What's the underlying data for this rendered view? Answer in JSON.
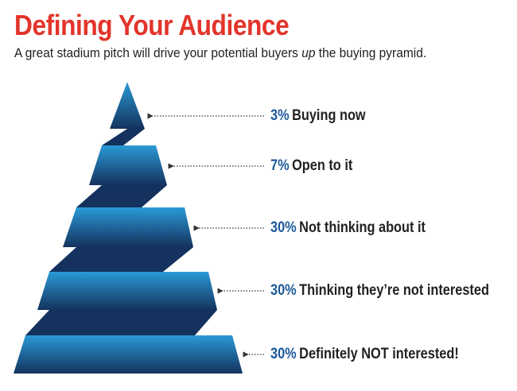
{
  "header": {
    "title": "Defining Your Audience",
    "subtitle_before": "A great stadium pitch will drive your potential buyers ",
    "subtitle_emphasis": "up",
    "subtitle_after": " the buying pyramid."
  },
  "colors": {
    "title": "#e3342b",
    "percent": "#1d5a9a",
    "label_text": "#231f20",
    "leader_line": "#333333",
    "tier_light": "#2a9ad6",
    "tier_dark": "#14325d",
    "connector": "#14325d"
  },
  "pyramid": {
    "tiers": [
      {
        "percent": "3%",
        "label": "Buying now",
        "value": 3,
        "stage": "Buying now"
      },
      {
        "percent": "7%",
        "label": "Open to it",
        "value": 7,
        "stage": "Open to it"
      },
      {
        "percent": "30%",
        "label": "Not thinking about it",
        "value": 30,
        "stage": "Not thinking about it"
      },
      {
        "percent": "30%",
        "label": "Thinking they’re not interested",
        "value": 30,
        "stage": "Thinking they're not interested"
      },
      {
        "percent": "30%",
        "label": "Definitely NOT interested!",
        "value": 30,
        "stage": "Definitely NOT interested"
      }
    ]
  }
}
